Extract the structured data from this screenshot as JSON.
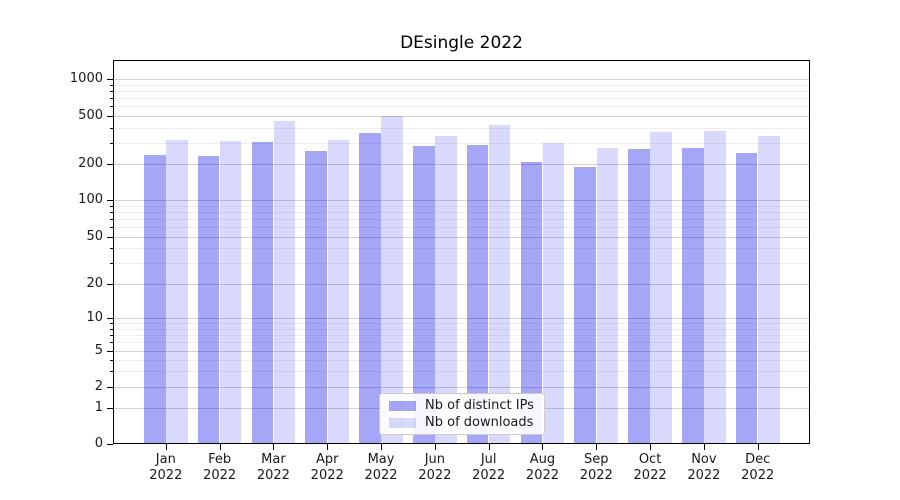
{
  "chart_data": {
    "type": "bar",
    "title": "DEsingle 2022",
    "categories": [
      "Jan",
      "Feb",
      "Mar",
      "Apr",
      "May",
      "Jun",
      "Jul",
      "Aug",
      "Sep",
      "Oct",
      "Nov",
      "Dec"
    ],
    "xtick_year": "2022",
    "series": [
      {
        "name": "Nb of distinct IPs",
        "color": "rgba(0,0,230,0.35)",
        "values": [
          240,
          235,
          305,
          255,
          365,
          285,
          290,
          210,
          190,
          265,
          275,
          250
        ]
      },
      {
        "name": "Nb of downloads",
        "color": "rgba(0,0,230,0.15)",
        "values": [
          315,
          310,
          455,
          320,
          500,
          345,
          420,
          300,
          270,
          370,
          375,
          340
        ]
      }
    ],
    "yscale": "symlog",
    "yticks": [
      0,
      1,
      2,
      5,
      10,
      20,
      50,
      100,
      200,
      500,
      1000
    ],
    "ylim": [
      0,
      1400
    ],
    "xlabel": "",
    "ylabel": "",
    "grid": "both",
    "legend_position": "lower center",
    "colors": {
      "grid_major": "#d3d3d3",
      "grid_minor": "#efefef",
      "axis": "#000000",
      "tick_label": "#1a1a1a"
    }
  }
}
